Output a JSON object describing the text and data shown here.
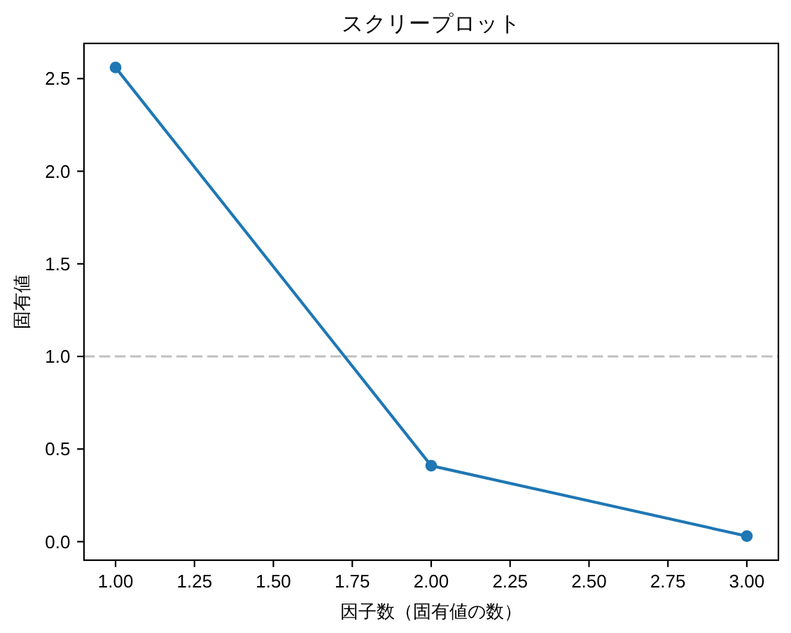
{
  "chart_data": {
    "type": "line",
    "title": "スクリープロット",
    "xlabel": "因子数（固有値の数）",
    "ylabel": "固有値",
    "x": [
      1,
      2,
      3
    ],
    "values": [
      2.56,
      0.41,
      0.03
    ],
    "color": "#1f77b4",
    "marker": "circle",
    "line_style": "solid",
    "xlim": [
      0.9,
      3.1
    ],
    "ylim": [
      -0.1,
      2.69
    ],
    "xticks": [
      {
        "value": 1,
        "label": "1.00"
      },
      {
        "value": 1.25,
        "label": "1.25"
      },
      {
        "value": 1.5,
        "label": "1.50"
      },
      {
        "value": 1.75,
        "label": "1.75"
      },
      {
        "value": 2,
        "label": "2.00"
      },
      {
        "value": 2.25,
        "label": "2.25"
      },
      {
        "value": 2.5,
        "label": "2.50"
      },
      {
        "value": 2.75,
        "label": "2.75"
      },
      {
        "value": 3,
        "label": "3.00"
      }
    ],
    "yticks": [
      {
        "value": 0,
        "label": "0.0"
      },
      {
        "value": 0.5,
        "label": "0.5"
      },
      {
        "value": 1,
        "label": "1.0"
      },
      {
        "value": 1.5,
        "label": "1.5"
      },
      {
        "value": 2,
        "label": "2.0"
      },
      {
        "value": 2.5,
        "label": "2.5"
      }
    ],
    "ref_lines": [
      {
        "axis": "y",
        "value": 1,
        "color": "#bfbfbf",
        "line_style": "dashed"
      }
    ]
  }
}
